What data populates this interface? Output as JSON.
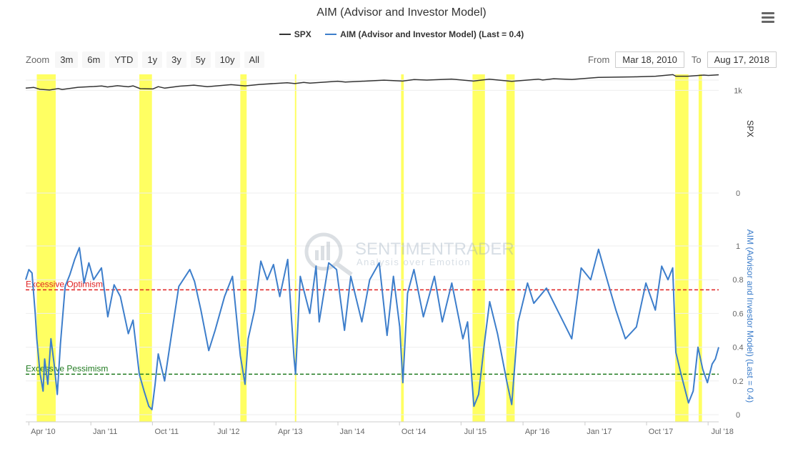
{
  "header": {
    "title": "AIM (Advisor and Investor Model)"
  },
  "legend": [
    {
      "name": "SPX",
      "color": "#333333"
    },
    {
      "name": "AIM (Advisor and Investor Model) (Last = 0.4)",
      "color": "#3d7ecb"
    }
  ],
  "toolbar": {
    "zoom_label": "Zoom",
    "zoom_buttons": [
      "3m",
      "6m",
      "YTD",
      "1y",
      "3y",
      "5y",
      "10y",
      "All"
    ],
    "from_label": "From",
    "from_value": "Mar 18, 2010",
    "to_label": "To",
    "to_value": "Aug 17, 2018"
  },
  "watermark": {
    "name": "SENTIMENTRADER",
    "tagline": "Analysis over Emotion"
  },
  "chart_data": {
    "type": "line",
    "x_range": [
      "2010-03-18",
      "2018-08-17"
    ],
    "x_tick_labels": [
      {
        "label": "Apr '10",
        "date": "2010-04-01"
      },
      {
        "label": "Jan '11",
        "date": "2011-01-01"
      },
      {
        "label": "Oct '11",
        "date": "2011-10-01"
      },
      {
        "label": "Jul '12",
        "date": "2012-07-01"
      },
      {
        "label": "Apr '13",
        "date": "2013-04-01"
      },
      {
        "label": "Jan '14",
        "date": "2014-01-01"
      },
      {
        "label": "Oct '14",
        "date": "2014-10-01"
      },
      {
        "label": "Jul '15",
        "date": "2015-07-01"
      },
      {
        "label": "Apr '16",
        "date": "2016-04-01"
      },
      {
        "label": "Jan '17",
        "date": "2017-01-01"
      },
      {
        "label": "Oct '17",
        "date": "2017-10-01"
      },
      {
        "label": "Jul '18",
        "date": "2018-07-01"
      }
    ],
    "spx_axis": {
      "title": "SPX",
      "ticks": [
        {
          "label": "1k",
          "value": 1000
        },
        {
          "label": "0",
          "value": 0
        }
      ]
    },
    "aim_axis": {
      "title": "AIM (Advisor and Investor Model) (Last = 0.4)",
      "ticks": [
        "0",
        "0.2",
        "0.4",
        "0.6",
        "0.8",
        "1"
      ],
      "range": [
        0,
        1
      ]
    },
    "thresholds": [
      {
        "label": "Excessive Optimism",
        "value": 0.74,
        "color": "#e02020"
      },
      {
        "label": "Excessive Pessimism",
        "value": 0.24,
        "color": "#1f7a1f"
      }
    ],
    "highlight_periods": [
      [
        "2010-05-06",
        "2010-07-29"
      ],
      [
        "2011-08-04",
        "2011-09-29"
      ],
      [
        "2012-10-25",
        "2012-11-22"
      ],
      [
        "2013-06-24",
        "2013-06-27"
      ],
      [
        "2014-10-08",
        "2014-10-20"
      ],
      [
        "2015-08-21",
        "2015-10-15"
      ],
      [
        "2016-01-18",
        "2016-02-24"
      ],
      [
        "2018-02-05",
        "2018-04-05"
      ],
      [
        "2018-05-20",
        "2018-06-04"
      ]
    ],
    "series": [
      {
        "name": "SPX",
        "color": "#333333",
        "axis": "spx",
        "points": [
          [
            "2010-03-18",
            1165
          ],
          [
            "2010-04-23",
            1217
          ],
          [
            "2010-05-20",
            1071
          ],
          [
            "2010-07-02",
            1022
          ],
          [
            "2010-08-09",
            1127
          ],
          [
            "2010-08-27",
            1064
          ],
          [
            "2010-11-05",
            1225
          ],
          [
            "2011-01-14",
            1293
          ],
          [
            "2011-02-18",
            1343
          ],
          [
            "2011-03-16",
            1256
          ],
          [
            "2011-04-29",
            1363
          ],
          [
            "2011-06-16",
            1267
          ],
          [
            "2011-07-07",
            1353
          ],
          [
            "2011-08-08",
            1119
          ],
          [
            "2011-10-03",
            1099
          ],
          [
            "2011-10-27",
            1284
          ],
          [
            "2011-11-25",
            1158
          ],
          [
            "2012-01-27",
            1316
          ],
          [
            "2012-04-02",
            1419
          ],
          [
            "2012-06-01",
            1278
          ],
          [
            "2012-09-14",
            1465
          ],
          [
            "2012-11-15",
            1353
          ],
          [
            "2013-01-18",
            1485
          ],
          [
            "2013-05-21",
            1669
          ],
          [
            "2013-06-24",
            1573
          ],
          [
            "2013-08-02",
            1709
          ],
          [
            "2013-08-30",
            1633
          ],
          [
            "2013-12-31",
            1848
          ],
          [
            "2014-02-03",
            1741
          ],
          [
            "2014-07-24",
            1987
          ],
          [
            "2014-10-15",
            1862
          ],
          [
            "2014-12-05",
            2075
          ],
          [
            "2015-01-30",
            1995
          ],
          [
            "2015-05-20",
            2130
          ],
          [
            "2015-08-25",
            1867
          ],
          [
            "2015-11-03",
            2109
          ],
          [
            "2016-02-11",
            1829
          ],
          [
            "2016-06-08",
            2119
          ],
          [
            "2016-06-27",
            2000
          ],
          [
            "2016-08-15",
            2190
          ],
          [
            "2016-11-04",
            2085
          ],
          [
            "2017-03-01",
            2395
          ],
          [
            "2017-08-07",
            2480
          ],
          [
            "2017-11-10",
            2582
          ],
          [
            "2018-01-26",
            2873
          ],
          [
            "2018-02-08",
            2581
          ],
          [
            "2018-04-02",
            2581
          ],
          [
            "2018-06-12",
            2786
          ],
          [
            "2018-07-02",
            2726
          ],
          [
            "2018-08-17",
            2850
          ]
        ]
      },
      {
        "name": "AIM (Advisor and Investor Model)",
        "color": "#3d7ecb",
        "axis": "aim",
        "points": [
          [
            "2010-03-18",
            0.8
          ],
          [
            "2010-04-01",
            0.86
          ],
          [
            "2010-04-15",
            0.84
          ],
          [
            "2010-04-29",
            0.6
          ],
          [
            "2010-05-06",
            0.45
          ],
          [
            "2010-05-20",
            0.25
          ],
          [
            "2010-06-03",
            0.14
          ],
          [
            "2010-06-10",
            0.33
          ],
          [
            "2010-06-24",
            0.18
          ],
          [
            "2010-07-08",
            0.45
          ],
          [
            "2010-07-22",
            0.3
          ],
          [
            "2010-08-05",
            0.12
          ],
          [
            "2010-08-19",
            0.42
          ],
          [
            "2010-09-09",
            0.76
          ],
          [
            "2010-09-30",
            0.83
          ],
          [
            "2010-10-21",
            0.92
          ],
          [
            "2010-11-11",
            0.99
          ],
          [
            "2010-12-02",
            0.78
          ],
          [
            "2010-12-23",
            0.9
          ],
          [
            "2011-01-13",
            0.8
          ],
          [
            "2011-02-17",
            0.87
          ],
          [
            "2011-03-17",
            0.58
          ],
          [
            "2011-04-14",
            0.77
          ],
          [
            "2011-05-12",
            0.7
          ],
          [
            "2011-06-16",
            0.48
          ],
          [
            "2011-07-07",
            0.56
          ],
          [
            "2011-08-04",
            0.24
          ],
          [
            "2011-08-25",
            0.14
          ],
          [
            "2011-09-15",
            0.05
          ],
          [
            "2011-09-29",
            0.03
          ],
          [
            "2011-10-13",
            0.18
          ],
          [
            "2011-10-27",
            0.36
          ],
          [
            "2011-11-24",
            0.2
          ],
          [
            "2011-12-22",
            0.45
          ],
          [
            "2012-01-26",
            0.76
          ],
          [
            "2012-03-15",
            0.86
          ],
          [
            "2012-04-05",
            0.79
          ],
          [
            "2012-05-03",
            0.62
          ],
          [
            "2012-06-07",
            0.38
          ],
          [
            "2012-07-05",
            0.5
          ],
          [
            "2012-08-16",
            0.7
          ],
          [
            "2012-09-20",
            0.82
          ],
          [
            "2012-10-25",
            0.35
          ],
          [
            "2012-11-15",
            0.18
          ],
          [
            "2012-11-29",
            0.45
          ],
          [
            "2012-12-27",
            0.62
          ],
          [
            "2013-01-24",
            0.91
          ],
          [
            "2013-02-21",
            0.8
          ],
          [
            "2013-03-21",
            0.89
          ],
          [
            "2013-04-18",
            0.7
          ],
          [
            "2013-05-23",
            0.92
          ],
          [
            "2013-06-20",
            0.34
          ],
          [
            "2013-06-27",
            0.24
          ],
          [
            "2013-07-18",
            0.82
          ],
          [
            "2013-08-29",
            0.6
          ],
          [
            "2013-09-26",
            0.88
          ],
          [
            "2013-10-10",
            0.55
          ],
          [
            "2013-11-21",
            0.9
          ],
          [
            "2013-12-26",
            0.86
          ],
          [
            "2014-01-30",
            0.5
          ],
          [
            "2014-02-27",
            0.82
          ],
          [
            "2014-04-17",
            0.55
          ],
          [
            "2014-05-22",
            0.8
          ],
          [
            "2014-07-03",
            0.9
          ],
          [
            "2014-08-07",
            0.47
          ],
          [
            "2014-09-04",
            0.82
          ],
          [
            "2014-10-02",
            0.52
          ],
          [
            "2014-10-16",
            0.19
          ],
          [
            "2014-11-06",
            0.72
          ],
          [
            "2014-12-04",
            0.86
          ],
          [
            "2015-01-15",
            0.58
          ],
          [
            "2015-03-05",
            0.82
          ],
          [
            "2015-04-09",
            0.55
          ],
          [
            "2015-05-21",
            0.78
          ],
          [
            "2015-07-09",
            0.45
          ],
          [
            "2015-07-30",
            0.55
          ],
          [
            "2015-08-27",
            0.05
          ],
          [
            "2015-09-17",
            0.12
          ],
          [
            "2015-10-15",
            0.45
          ],
          [
            "2015-11-05",
            0.67
          ],
          [
            "2015-12-10",
            0.48
          ],
          [
            "2016-01-21",
            0.19
          ],
          [
            "2016-02-11",
            0.06
          ],
          [
            "2016-03-10",
            0.55
          ],
          [
            "2016-04-21",
            0.78
          ],
          [
            "2016-05-19",
            0.66
          ],
          [
            "2016-07-14",
            0.75
          ],
          [
            "2016-09-08",
            0.6
          ],
          [
            "2016-11-03",
            0.45
          ],
          [
            "2016-12-15",
            0.87
          ],
          [
            "2017-01-26",
            0.8
          ],
          [
            "2017-03-02",
            0.98
          ],
          [
            "2017-04-13",
            0.78
          ],
          [
            "2017-05-18",
            0.62
          ],
          [
            "2017-06-29",
            0.45
          ],
          [
            "2017-08-17",
            0.52
          ],
          [
            "2017-09-28",
            0.78
          ],
          [
            "2017-11-09",
            0.62
          ],
          [
            "2017-12-07",
            0.88
          ],
          [
            "2018-01-04",
            0.8
          ],
          [
            "2018-01-25",
            0.87
          ],
          [
            "2018-02-08",
            0.37
          ],
          [
            "2018-03-01",
            0.25
          ],
          [
            "2018-04-05",
            0.07
          ],
          [
            "2018-04-26",
            0.14
          ],
          [
            "2018-05-17",
            0.4
          ],
          [
            "2018-06-07",
            0.27
          ],
          [
            "2018-06-28",
            0.19
          ],
          [
            "2018-07-19",
            0.3
          ],
          [
            "2018-08-02",
            0.33
          ],
          [
            "2018-08-17",
            0.4
          ]
        ]
      }
    ]
  }
}
